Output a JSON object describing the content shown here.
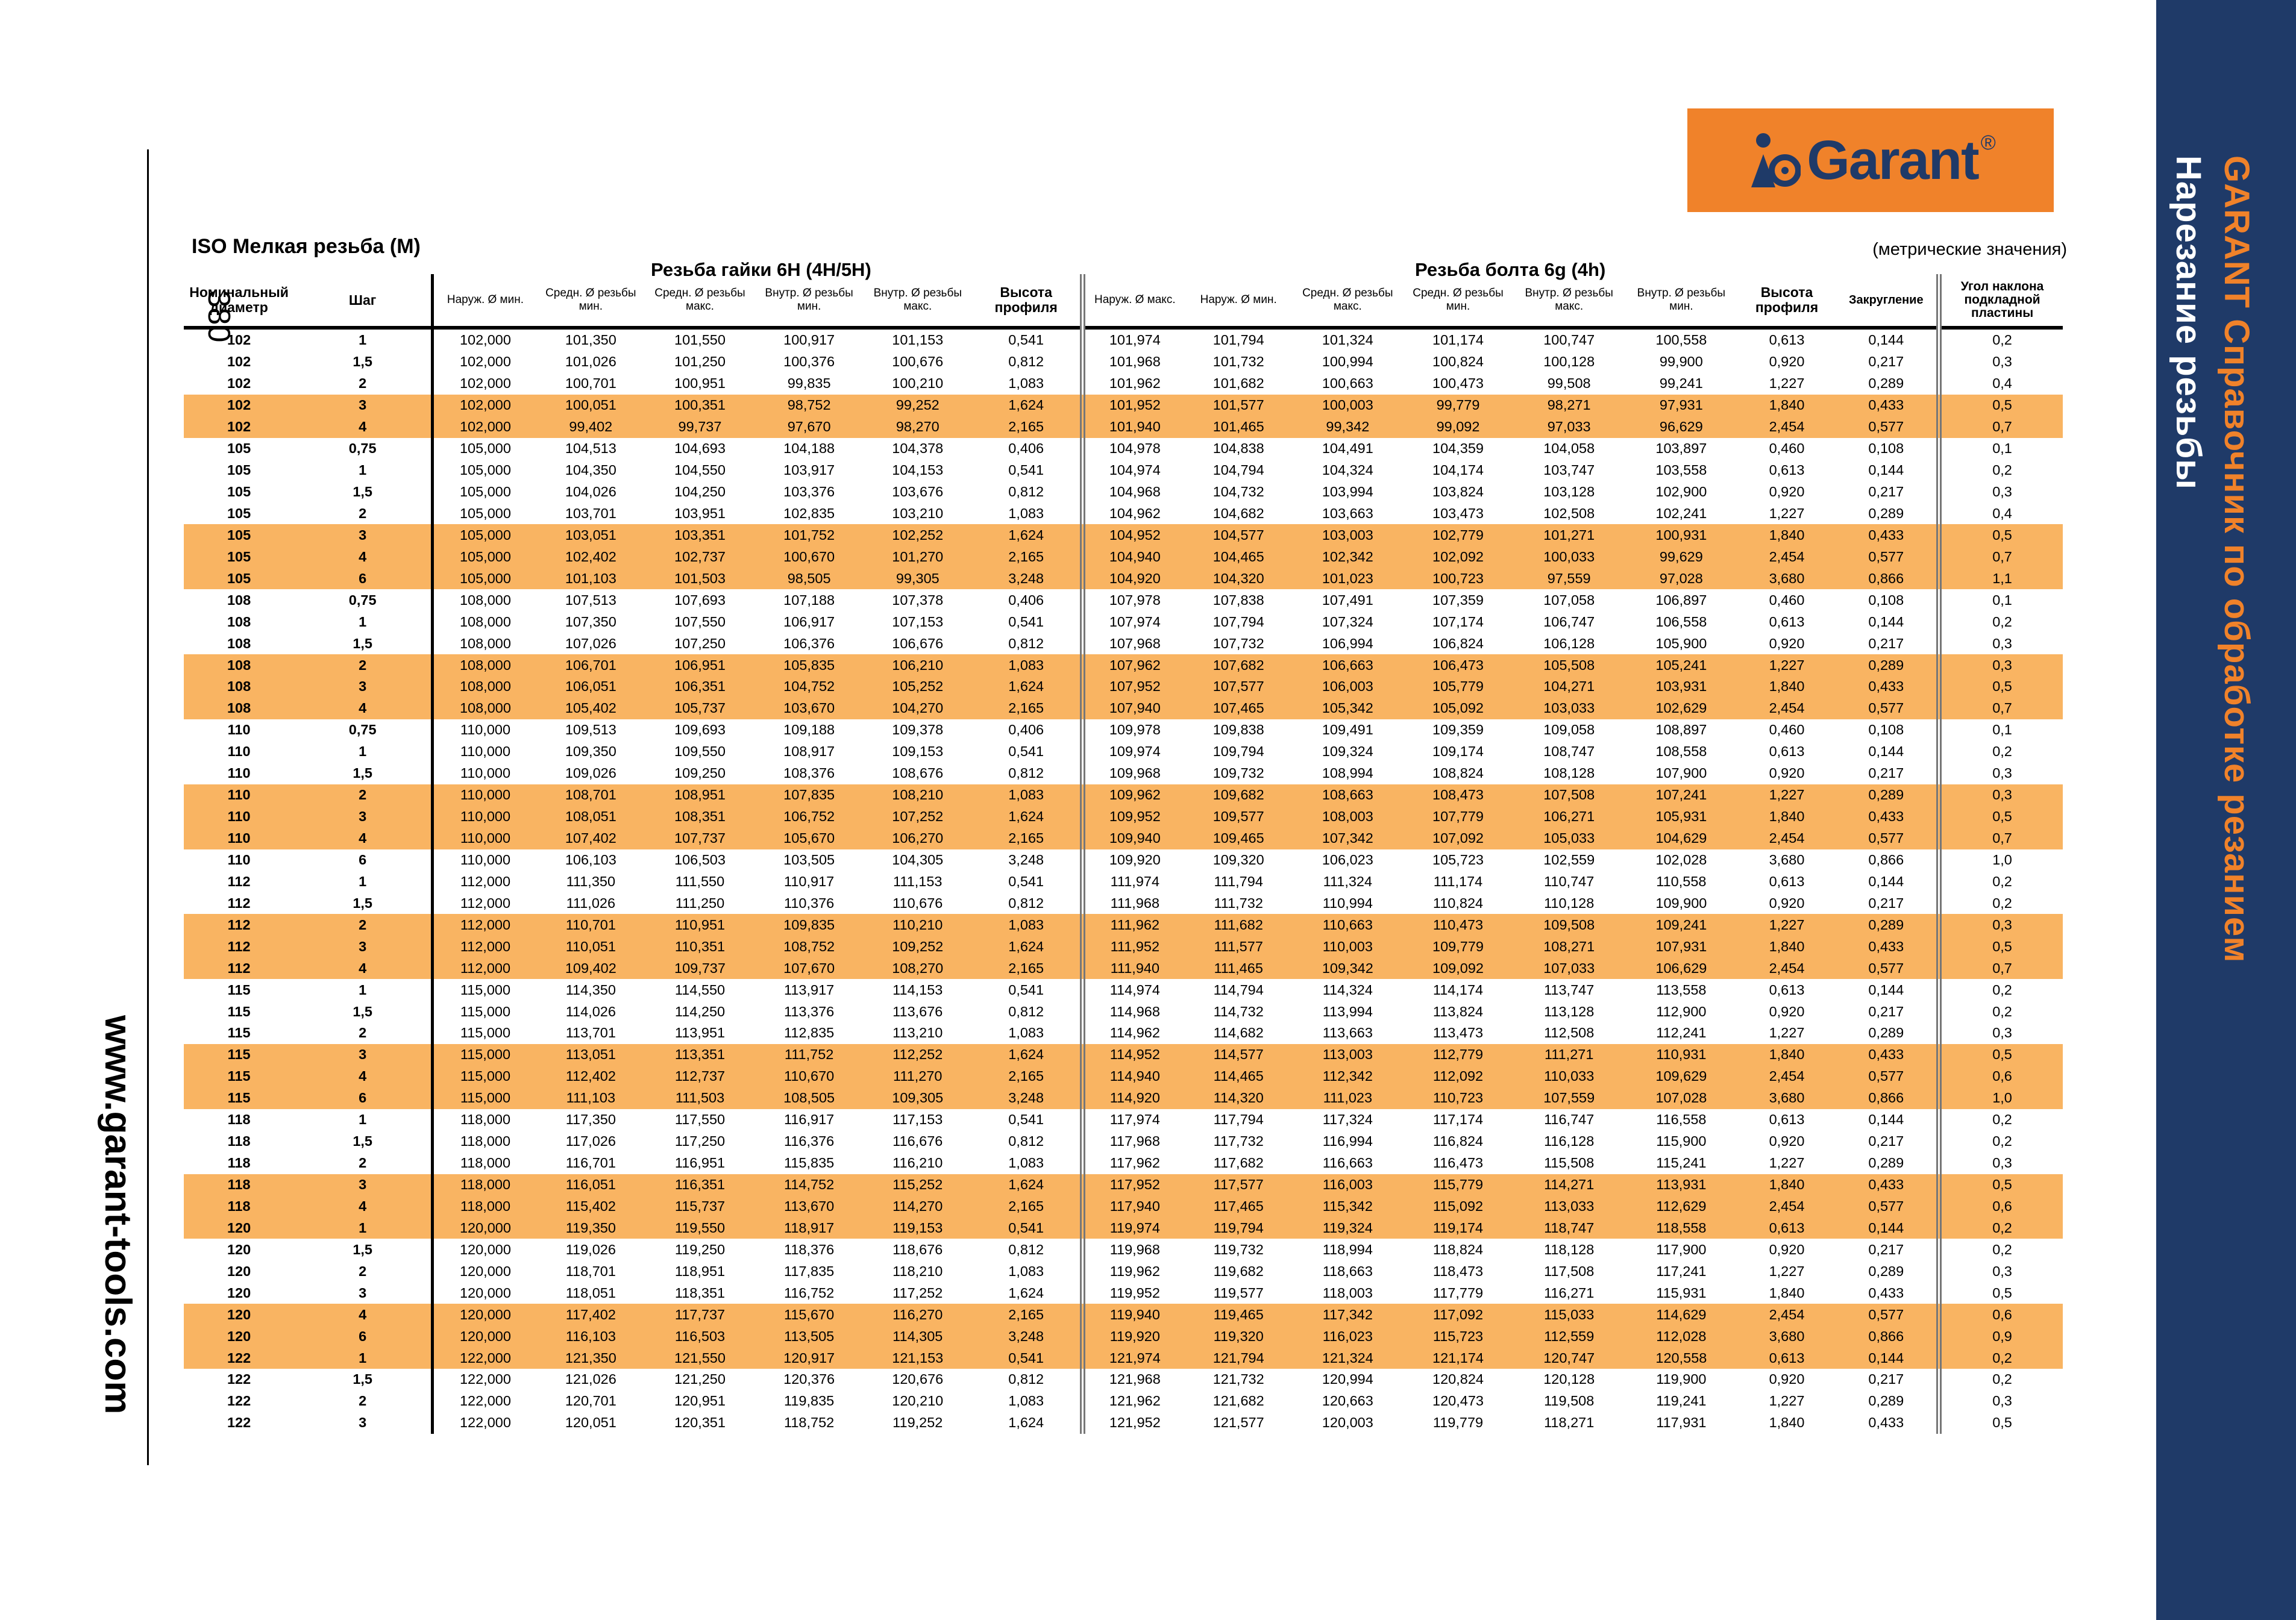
{
  "page_number": "380",
  "website": "www.garant-tools.com",
  "sidebar": {
    "title": "GARANT Справочник по обработке резанием",
    "subtitle": "Нарезание резьбы"
  },
  "logo": {
    "text": "Garant",
    "reg": "®",
    "colors": {
      "bg": "#f0822a",
      "fg": "#1f3a68"
    }
  },
  "doc_title": "ISO Мелкая резьба (M)",
  "metric_note": "(метрические значения)",
  "group_nut": "Резьба гайки 6H (4H/5H)",
  "group_bolt": "Резьба болта 6g (4h)",
  "headers": [
    "Номинальный диаметр",
    "Шаг",
    "Наруж. Ø мин.",
    "Средн. Ø резьбы мин.",
    "Средн. Ø резьбы макс.",
    "Внутр. Ø резьбы мин.",
    "Внутр. Ø резьбы макс.",
    "Высота профиля",
    "Наруж. Ø макс.",
    "Наруж. Ø мин.",
    "Средн. Ø резьбы макс.",
    "Средн. Ø резьбы мин.",
    "Внутр. Ø резьбы макс.",
    "Внутр. Ø резьбы мин.",
    "Высота профиля",
    "Закругление",
    "Угол наклона подкладной пластины"
  ],
  "rows": [
    [
      "102",
      "1",
      "102,000",
      "101,350",
      "101,550",
      "100,917",
      "101,153",
      "0,541",
      "101,974",
      "101,794",
      "101,324",
      "101,174",
      "100,747",
      "100,558",
      "0,613",
      "0,144",
      "0,2"
    ],
    [
      "102",
      "1,5",
      "102,000",
      "101,026",
      "101,250",
      "100,376",
      "100,676",
      "0,812",
      "101,968",
      "101,732",
      "100,994",
      "100,824",
      "100,128",
      "99,900",
      "0,920",
      "0,217",
      "0,3"
    ],
    [
      "102",
      "2",
      "102,000",
      "100,701",
      "100,951",
      "99,835",
      "100,210",
      "1,083",
      "101,962",
      "101,682",
      "100,663",
      "100,473",
      "99,508",
      "99,241",
      "1,227",
      "0,289",
      "0,4"
    ],
    [
      "102",
      "3",
      "102,000",
      "100,051",
      "100,351",
      "98,752",
      "99,252",
      "1,624",
      "101,952",
      "101,577",
      "100,003",
      "99,779",
      "98,271",
      "97,931",
      "1,840",
      "0,433",
      "0,5"
    ],
    [
      "102",
      "4",
      "102,000",
      "99,402",
      "99,737",
      "97,670",
      "98,270",
      "2,165",
      "101,940",
      "101,465",
      "99,342",
      "99,092",
      "97,033",
      "96,629",
      "2,454",
      "0,577",
      "0,7"
    ],
    [
      "105",
      "0,75",
      "105,000",
      "104,513",
      "104,693",
      "104,188",
      "104,378",
      "0,406",
      "104,978",
      "104,838",
      "104,491",
      "104,359",
      "104,058",
      "103,897",
      "0,460",
      "0,108",
      "0,1"
    ],
    [
      "105",
      "1",
      "105,000",
      "104,350",
      "104,550",
      "103,917",
      "104,153",
      "0,541",
      "104,974",
      "104,794",
      "104,324",
      "104,174",
      "103,747",
      "103,558",
      "0,613",
      "0,144",
      "0,2"
    ],
    [
      "105",
      "1,5",
      "105,000",
      "104,026",
      "104,250",
      "103,376",
      "103,676",
      "0,812",
      "104,968",
      "104,732",
      "103,994",
      "103,824",
      "103,128",
      "102,900",
      "0,920",
      "0,217",
      "0,3"
    ],
    [
      "105",
      "2",
      "105,000",
      "103,701",
      "103,951",
      "102,835",
      "103,210",
      "1,083",
      "104,962",
      "104,682",
      "103,663",
      "103,473",
      "102,508",
      "102,241",
      "1,227",
      "0,289",
      "0,4"
    ],
    [
      "105",
      "3",
      "105,000",
      "103,051",
      "103,351",
      "101,752",
      "102,252",
      "1,624",
      "104,952",
      "104,577",
      "103,003",
      "102,779",
      "101,271",
      "100,931",
      "1,840",
      "0,433",
      "0,5"
    ],
    [
      "105",
      "4",
      "105,000",
      "102,402",
      "102,737",
      "100,670",
      "101,270",
      "2,165",
      "104,940",
      "104,465",
      "102,342",
      "102,092",
      "100,033",
      "99,629",
      "2,454",
      "0,577",
      "0,7"
    ],
    [
      "105",
      "6",
      "105,000",
      "101,103",
      "101,503",
      "98,505",
      "99,305",
      "3,248",
      "104,920",
      "104,320",
      "101,023",
      "100,723",
      "97,559",
      "97,028",
      "3,680",
      "0,866",
      "1,1"
    ],
    [
      "108",
      "0,75",
      "108,000",
      "107,513",
      "107,693",
      "107,188",
      "107,378",
      "0,406",
      "107,978",
      "107,838",
      "107,491",
      "107,359",
      "107,058",
      "106,897",
      "0,460",
      "0,108",
      "0,1"
    ],
    [
      "108",
      "1",
      "108,000",
      "107,350",
      "107,550",
      "106,917",
      "107,153",
      "0,541",
      "107,974",
      "107,794",
      "107,324",
      "107,174",
      "106,747",
      "106,558",
      "0,613",
      "0,144",
      "0,2"
    ],
    [
      "108",
      "1,5",
      "108,000",
      "107,026",
      "107,250",
      "106,376",
      "106,676",
      "0,812",
      "107,968",
      "107,732",
      "106,994",
      "106,824",
      "106,128",
      "105,900",
      "0,920",
      "0,217",
      "0,3"
    ],
    [
      "108",
      "2",
      "108,000",
      "106,701",
      "106,951",
      "105,835",
      "106,210",
      "1,083",
      "107,962",
      "107,682",
      "106,663",
      "106,473",
      "105,508",
      "105,241",
      "1,227",
      "0,289",
      "0,3"
    ],
    [
      "108",
      "3",
      "108,000",
      "106,051",
      "106,351",
      "104,752",
      "105,252",
      "1,624",
      "107,952",
      "107,577",
      "106,003",
      "105,779",
      "104,271",
      "103,931",
      "1,840",
      "0,433",
      "0,5"
    ],
    [
      "108",
      "4",
      "108,000",
      "105,402",
      "105,737",
      "103,670",
      "104,270",
      "2,165",
      "107,940",
      "107,465",
      "105,342",
      "105,092",
      "103,033",
      "102,629",
      "2,454",
      "0,577",
      "0,7"
    ],
    [
      "110",
      "0,75",
      "110,000",
      "109,513",
      "109,693",
      "109,188",
      "109,378",
      "0,406",
      "109,978",
      "109,838",
      "109,491",
      "109,359",
      "109,058",
      "108,897",
      "0,460",
      "0,108",
      "0,1"
    ],
    [
      "110",
      "1",
      "110,000",
      "109,350",
      "109,550",
      "108,917",
      "109,153",
      "0,541",
      "109,974",
      "109,794",
      "109,324",
      "109,174",
      "108,747",
      "108,558",
      "0,613",
      "0,144",
      "0,2"
    ],
    [
      "110",
      "1,5",
      "110,000",
      "109,026",
      "109,250",
      "108,376",
      "108,676",
      "0,812",
      "109,968",
      "109,732",
      "108,994",
      "108,824",
      "108,128",
      "107,900",
      "0,920",
      "0,217",
      "0,3"
    ],
    [
      "110",
      "2",
      "110,000",
      "108,701",
      "108,951",
      "107,835",
      "108,210",
      "1,083",
      "109,962",
      "109,682",
      "108,663",
      "108,473",
      "107,508",
      "107,241",
      "1,227",
      "0,289",
      "0,3"
    ],
    [
      "110",
      "3",
      "110,000",
      "108,051",
      "108,351",
      "106,752",
      "107,252",
      "1,624",
      "109,952",
      "109,577",
      "108,003",
      "107,779",
      "106,271",
      "105,931",
      "1,840",
      "0,433",
      "0,5"
    ],
    [
      "110",
      "4",
      "110,000",
      "107,402",
      "107,737",
      "105,670",
      "106,270",
      "2,165",
      "109,940",
      "109,465",
      "107,342",
      "107,092",
      "105,033",
      "104,629",
      "2,454",
      "0,577",
      "0,7"
    ],
    [
      "110",
      "6",
      "110,000",
      "106,103",
      "106,503",
      "103,505",
      "104,305",
      "3,248",
      "109,920",
      "109,320",
      "106,023",
      "105,723",
      "102,559",
      "102,028",
      "3,680",
      "0,866",
      "1,0"
    ],
    [
      "112",
      "1",
      "112,000",
      "111,350",
      "111,550",
      "110,917",
      "111,153",
      "0,541",
      "111,974",
      "111,794",
      "111,324",
      "111,174",
      "110,747",
      "110,558",
      "0,613",
      "0,144",
      "0,2"
    ],
    [
      "112",
      "1,5",
      "112,000",
      "111,026",
      "111,250",
      "110,376",
      "110,676",
      "0,812",
      "111,968",
      "111,732",
      "110,994",
      "110,824",
      "110,128",
      "109,900",
      "0,920",
      "0,217",
      "0,2"
    ],
    [
      "112",
      "2",
      "112,000",
      "110,701",
      "110,951",
      "109,835",
      "110,210",
      "1,083",
      "111,962",
      "111,682",
      "110,663",
      "110,473",
      "109,508",
      "109,241",
      "1,227",
      "0,289",
      "0,3"
    ],
    [
      "112",
      "3",
      "112,000",
      "110,051",
      "110,351",
      "108,752",
      "109,252",
      "1,624",
      "111,952",
      "111,577",
      "110,003",
      "109,779",
      "108,271",
      "107,931",
      "1,840",
      "0,433",
      "0,5"
    ],
    [
      "112",
      "4",
      "112,000",
      "109,402",
      "109,737",
      "107,670",
      "108,270",
      "2,165",
      "111,940",
      "111,465",
      "109,342",
      "109,092",
      "107,033",
      "106,629",
      "2,454",
      "0,577",
      "0,7"
    ],
    [
      "115",
      "1",
      "115,000",
      "114,350",
      "114,550",
      "113,917",
      "114,153",
      "0,541",
      "114,974",
      "114,794",
      "114,324",
      "114,174",
      "113,747",
      "113,558",
      "0,613",
      "0,144",
      "0,2"
    ],
    [
      "115",
      "1,5",
      "115,000",
      "114,026",
      "114,250",
      "113,376",
      "113,676",
      "0,812",
      "114,968",
      "114,732",
      "113,994",
      "113,824",
      "113,128",
      "112,900",
      "0,920",
      "0,217",
      "0,2"
    ],
    [
      "115",
      "2",
      "115,000",
      "113,701",
      "113,951",
      "112,835",
      "113,210",
      "1,083",
      "114,962",
      "114,682",
      "113,663",
      "113,473",
      "112,508",
      "112,241",
      "1,227",
      "0,289",
      "0,3"
    ],
    [
      "115",
      "3",
      "115,000",
      "113,051",
      "113,351",
      "111,752",
      "112,252",
      "1,624",
      "114,952",
      "114,577",
      "113,003",
      "112,779",
      "111,271",
      "110,931",
      "1,840",
      "0,433",
      "0,5"
    ],
    [
      "115",
      "4",
      "115,000",
      "112,402",
      "112,737",
      "110,670",
      "111,270",
      "2,165",
      "114,940",
      "114,465",
      "112,342",
      "112,092",
      "110,033",
      "109,629",
      "2,454",
      "0,577",
      "0,6"
    ],
    [
      "115",
      "6",
      "115,000",
      "111,103",
      "111,503",
      "108,505",
      "109,305",
      "3,248",
      "114,920",
      "114,320",
      "111,023",
      "110,723",
      "107,559",
      "107,028",
      "3,680",
      "0,866",
      "1,0"
    ],
    [
      "118",
      "1",
      "118,000",
      "117,350",
      "117,550",
      "116,917",
      "117,153",
      "0,541",
      "117,974",
      "117,794",
      "117,324",
      "117,174",
      "116,747",
      "116,558",
      "0,613",
      "0,144",
      "0,2"
    ],
    [
      "118",
      "1,5",
      "118,000",
      "117,026",
      "117,250",
      "116,376",
      "116,676",
      "0,812",
      "117,968",
      "117,732",
      "116,994",
      "116,824",
      "116,128",
      "115,900",
      "0,920",
      "0,217",
      "0,2"
    ],
    [
      "118",
      "2",
      "118,000",
      "116,701",
      "116,951",
      "115,835",
      "116,210",
      "1,083",
      "117,962",
      "117,682",
      "116,663",
      "116,473",
      "115,508",
      "115,241",
      "1,227",
      "0,289",
      "0,3"
    ],
    [
      "118",
      "3",
      "118,000",
      "116,051",
      "116,351",
      "114,752",
      "115,252",
      "1,624",
      "117,952",
      "117,577",
      "116,003",
      "115,779",
      "114,271",
      "113,931",
      "1,840",
      "0,433",
      "0,5"
    ],
    [
      "118",
      "4",
      "118,000",
      "115,402",
      "115,737",
      "113,670",
      "114,270",
      "2,165",
      "117,940",
      "117,465",
      "115,342",
      "115,092",
      "113,033",
      "112,629",
      "2,454",
      "0,577",
      "0,6"
    ],
    [
      "120",
      "1",
      "120,000",
      "119,350",
      "119,550",
      "118,917",
      "119,153",
      "0,541",
      "119,974",
      "119,794",
      "119,324",
      "119,174",
      "118,747",
      "118,558",
      "0,613",
      "0,144",
      "0,2"
    ],
    [
      "120",
      "1,5",
      "120,000",
      "119,026",
      "119,250",
      "118,376",
      "118,676",
      "0,812",
      "119,968",
      "119,732",
      "118,994",
      "118,824",
      "118,128",
      "117,900",
      "0,920",
      "0,217",
      "0,2"
    ],
    [
      "120",
      "2",
      "120,000",
      "118,701",
      "118,951",
      "117,835",
      "118,210",
      "1,083",
      "119,962",
      "119,682",
      "118,663",
      "118,473",
      "117,508",
      "117,241",
      "1,227",
      "0,289",
      "0,3"
    ],
    [
      "120",
      "3",
      "120,000",
      "118,051",
      "118,351",
      "116,752",
      "117,252",
      "1,624",
      "119,952",
      "119,577",
      "118,003",
      "117,779",
      "116,271",
      "115,931",
      "1,840",
      "0,433",
      "0,5"
    ],
    [
      "120",
      "4",
      "120,000",
      "117,402",
      "117,737",
      "115,670",
      "116,270",
      "2,165",
      "119,940",
      "119,465",
      "117,342",
      "117,092",
      "115,033",
      "114,629",
      "2,454",
      "0,577",
      "0,6"
    ],
    [
      "120",
      "6",
      "120,000",
      "116,103",
      "116,503",
      "113,505",
      "114,305",
      "3,248",
      "119,920",
      "119,320",
      "116,023",
      "115,723",
      "112,559",
      "112,028",
      "3,680",
      "0,866",
      "0,9"
    ],
    [
      "122",
      "1",
      "122,000",
      "121,350",
      "121,550",
      "120,917",
      "121,153",
      "0,541",
      "121,974",
      "121,794",
      "121,324",
      "121,174",
      "120,747",
      "120,558",
      "0,613",
      "0,144",
      "0,2"
    ],
    [
      "122",
      "1,5",
      "122,000",
      "121,026",
      "121,250",
      "120,376",
      "120,676",
      "0,812",
      "121,968",
      "121,732",
      "120,994",
      "120,824",
      "120,128",
      "119,900",
      "0,920",
      "0,217",
      "0,2"
    ],
    [
      "122",
      "2",
      "122,000",
      "120,701",
      "120,951",
      "119,835",
      "120,210",
      "1,083",
      "121,962",
      "121,682",
      "120,663",
      "120,473",
      "119,508",
      "119,241",
      "1,227",
      "0,289",
      "0,3"
    ],
    [
      "122",
      "3",
      "122,000",
      "120,051",
      "120,351",
      "118,752",
      "119,252",
      "1,624",
      "121,952",
      "121,577",
      "120,003",
      "119,779",
      "118,271",
      "117,931",
      "1,840",
      "0,433",
      "0,5"
    ]
  ],
  "highlight_rows": [
    3,
    4,
    9,
    10,
    11,
    15,
    16,
    17,
    21,
    22,
    23,
    27,
    28,
    29,
    33,
    34,
    35,
    39,
    40,
    41,
    45,
    46,
    47
  ],
  "colors": {
    "highlight": "#f9b462",
    "band": "#1f3a68",
    "accent": "#f0822a"
  }
}
